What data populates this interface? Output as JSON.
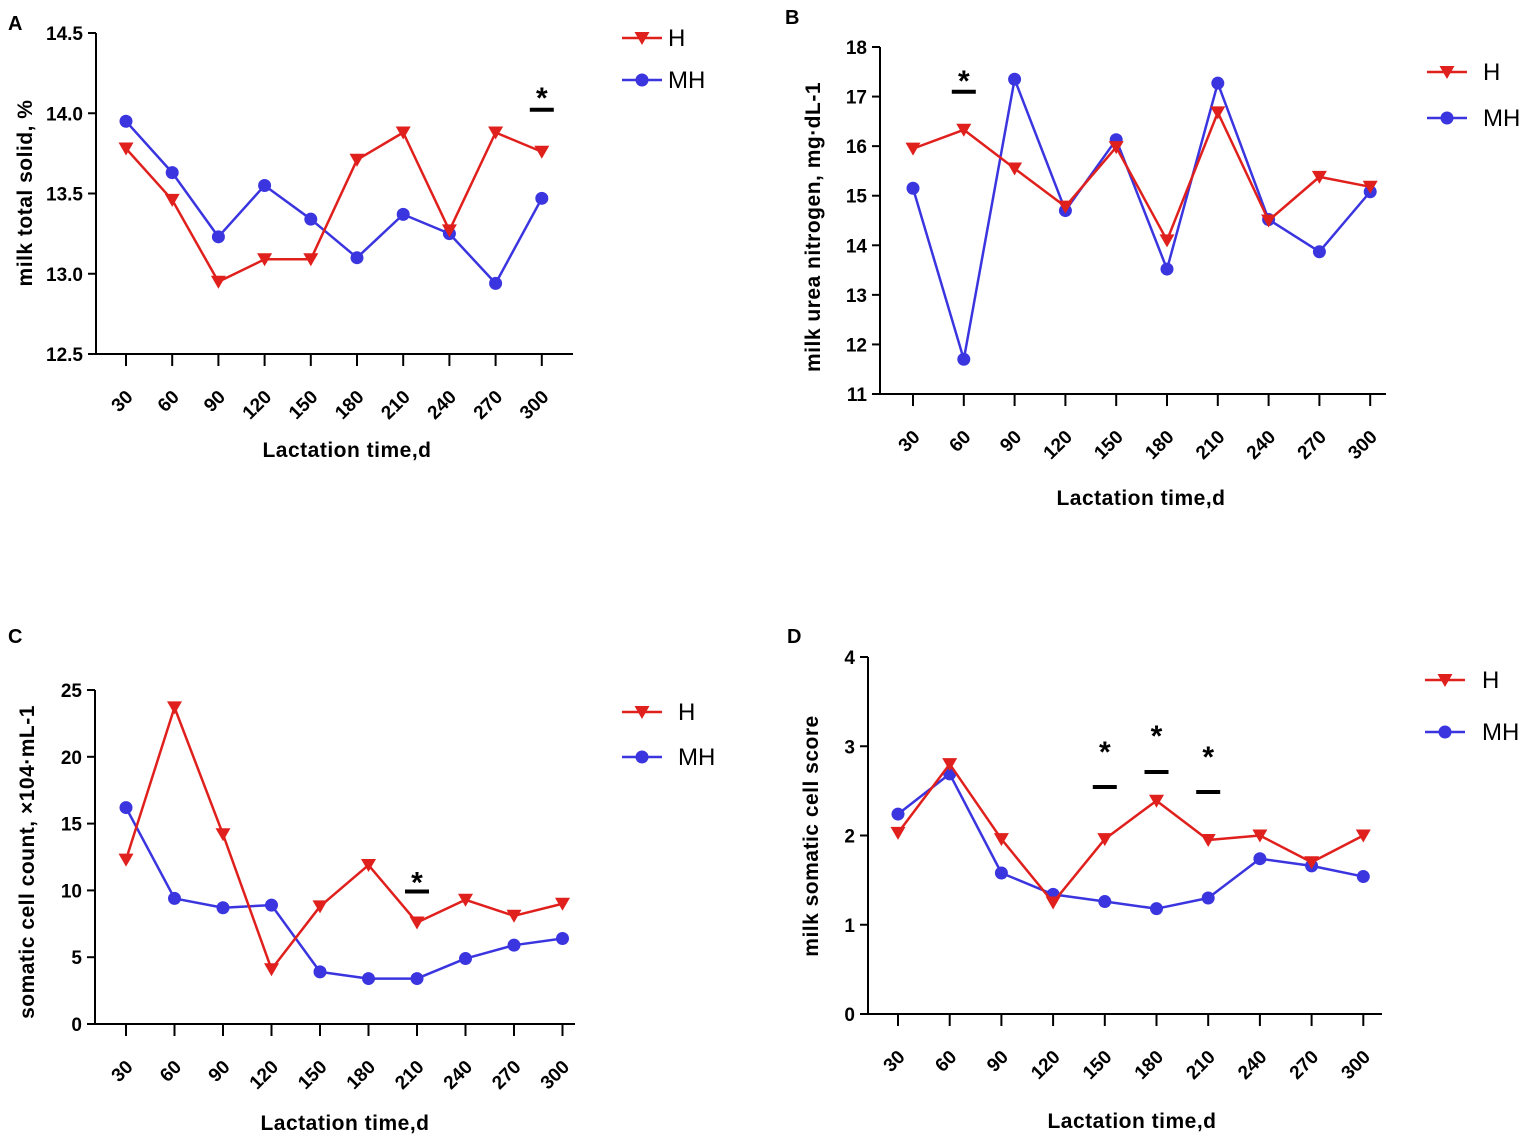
{
  "figure": {
    "panel_labels": [
      "A",
      "B",
      "C",
      "D"
    ]
  },
  "colors": {
    "H": "#e0201d",
    "MH": "#3b35e0",
    "axis": "#000000"
  },
  "chart_data": [
    {
      "panel": "A",
      "type": "line",
      "title": "",
      "xlabel": "Lactation time,d",
      "ylabel": "milk total solid, %",
      "categories": [
        "30",
        "60",
        "90",
        "120",
        "150",
        "180",
        "210",
        "240",
        "270",
        "300"
      ],
      "ylim": [
        12.5,
        14.5
      ],
      "yticks": [
        12.5,
        13.0,
        13.5,
        14.0,
        14.5
      ],
      "ytick_labels": [
        "12.5",
        "13.0",
        "13.5",
        "14.0",
        "14.5"
      ],
      "legend": [
        "H",
        "MH"
      ],
      "legend_position": "top-right outside",
      "series": [
        {
          "name": "H",
          "marker": "triangle-down",
          "values": [
            13.78,
            13.46,
            12.95,
            13.09,
            13.09,
            13.71,
            13.88,
            13.27,
            13.88,
            13.76
          ]
        },
        {
          "name": "MH",
          "marker": "circle",
          "values": [
            13.95,
            13.63,
            13.23,
            13.55,
            13.34,
            13.1,
            13.37,
            13.25,
            12.94,
            13.47
          ]
        }
      ],
      "significance": [
        {
          "category": "300",
          "label": "*"
        }
      ]
    },
    {
      "panel": "B",
      "type": "line",
      "title": "",
      "xlabel": "Lactation time,d",
      "ylabel": "milk urea nitrogen, mg·dL-1",
      "categories": [
        "30",
        "60",
        "90",
        "120",
        "150",
        "180",
        "210",
        "240",
        "270",
        "300"
      ],
      "ylim": [
        11,
        18
      ],
      "yticks": [
        11,
        12,
        13,
        14,
        15,
        16,
        17,
        18
      ],
      "ytick_labels": [
        "11",
        "12",
        "13",
        "14",
        "15",
        "16",
        "17",
        "18"
      ],
      "legend": [
        "H",
        "MH"
      ],
      "legend_position": "top-right outside",
      "series": [
        {
          "name": "H",
          "marker": "triangle-down",
          "values": [
            15.95,
            16.33,
            15.55,
            14.78,
            15.98,
            14.1,
            16.68,
            14.5,
            15.38,
            15.18
          ]
        },
        {
          "name": "MH",
          "marker": "circle",
          "values": [
            15.15,
            11.7,
            17.35,
            14.7,
            16.13,
            13.52,
            17.27,
            14.52,
            13.87,
            15.08
          ]
        }
      ],
      "significance": [
        {
          "category": "60",
          "label": "*"
        }
      ]
    },
    {
      "panel": "C",
      "type": "line",
      "title": "",
      "xlabel": "Lactation time,d",
      "ylabel": "somatic cell count, ×104·mL-1",
      "categories": [
        "30",
        "60",
        "90",
        "120",
        "150",
        "180",
        "210",
        "240",
        "270",
        "300"
      ],
      "ylim": [
        0,
        25
      ],
      "yticks": [
        0,
        5,
        10,
        15,
        20,
        25
      ],
      "ytick_labels": [
        "0",
        "5",
        "10",
        "15",
        "20",
        "25"
      ],
      "legend": [
        "H",
        "MH"
      ],
      "legend_position": "top-right outside",
      "series": [
        {
          "name": "H",
          "marker": "triangle-down",
          "values": [
            12.3,
            23.7,
            14.2,
            4.1,
            8.8,
            11.9,
            7.6,
            9.3,
            8.1,
            9.0
          ]
        },
        {
          "name": "MH",
          "marker": "circle",
          "values": [
            16.2,
            9.4,
            8.7,
            8.9,
            3.9,
            3.4,
            3.4,
            4.9,
            5.9,
            6.4
          ]
        }
      ],
      "significance": [
        {
          "category": "210",
          "label": "*"
        }
      ]
    },
    {
      "panel": "D",
      "type": "line",
      "title": "",
      "xlabel": "Lactation time,d",
      "ylabel": "milk somatic cell score",
      "categories": [
        "30",
        "60",
        "90",
        "120",
        "150",
        "180",
        "210",
        "240",
        "270",
        "300"
      ],
      "ylim": [
        0,
        4
      ],
      "yticks": [
        0,
        1,
        2,
        3,
        4
      ],
      "ytick_labels": [
        "0",
        "1",
        "2",
        "3",
        "4"
      ],
      "legend": [
        "H",
        "MH"
      ],
      "legend_position": "top-right outside",
      "series": [
        {
          "name": "H",
          "marker": "triangle-down",
          "values": [
            2.03,
            2.8,
            1.96,
            1.25,
            1.96,
            2.39,
            1.95,
            2.0,
            1.7,
            2.0
          ]
        },
        {
          "name": "MH",
          "marker": "circle",
          "values": [
            2.24,
            2.69,
            1.58,
            1.34,
            1.26,
            1.18,
            1.3,
            1.74,
            1.66,
            1.54
          ]
        }
      ],
      "significance": [
        {
          "category": "150",
          "label": "*"
        },
        {
          "category": "180",
          "label": "*"
        },
        {
          "category": "210",
          "label": "*"
        }
      ]
    }
  ]
}
